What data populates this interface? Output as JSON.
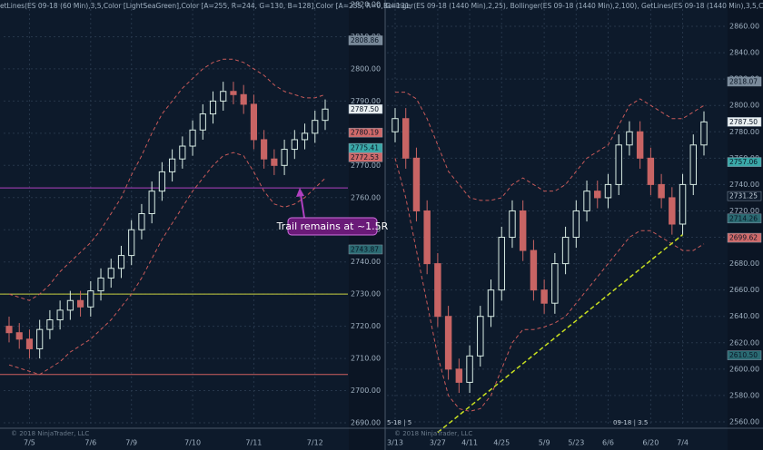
{
  "chart_data": [
    {
      "type": "candlestick",
      "title": "etLines(ES 09-18 (60 Min),3,5,Color [LightSeaGreen],Color [A=255, R=244, G=130, B=128],Color [A=255, R=0, G=131,",
      "watermark": "© 2018 NinjaTrader, LLC",
      "categories": [
        null,
        null,
        "7/5",
        null,
        null,
        null,
        null,
        null,
        "7/6",
        null,
        null,
        null,
        "7/9",
        null,
        null,
        null,
        null,
        null,
        "7/10",
        null,
        null,
        null,
        null,
        null,
        "7/11",
        null,
        null,
        null,
        null,
        null,
        "7/12",
        null
      ],
      "open": [
        2720,
        2718,
        2716,
        2713,
        2719,
        2722,
        2725,
        2728,
        2726,
        2731,
        2735,
        2738,
        2742,
        2750,
        2755,
        2762,
        2768,
        2772,
        2776,
        2781,
        2786,
        2790,
        2793,
        2792,
        2789,
        2778,
        2772,
        2770,
        2775,
        2778,
        2780,
        2784
      ],
      "high": [
        2723,
        2721,
        2719,
        2722,
        2725,
        2728,
        2731,
        2731,
        2734,
        2738,
        2741,
        2745,
        2753,
        2758,
        2765,
        2771,
        2775,
        2779,
        2784,
        2789,
        2793,
        2796,
        2796,
        2795,
        2792,
        2781,
        2775,
        2778,
        2781,
        2783,
        2787,
        2790.5
      ],
      "low": [
        2715,
        2713,
        2710,
        2710,
        2716,
        2719,
        2722,
        2723,
        2723,
        2728,
        2732,
        2735,
        2739,
        2747,
        2752,
        2759,
        2765,
        2769,
        2773,
        2778,
        2783,
        2787,
        2789,
        2786,
        2775,
        2769,
        2767,
        2767,
        2772,
        2775,
        2777,
        2781
      ],
      "close": [
        2718,
        2716,
        2713,
        2719,
        2722,
        2725,
        2728,
        2726,
        2731,
        2735,
        2738,
        2742,
        2750,
        2755,
        2762,
        2768,
        2772,
        2776,
        2781,
        2786,
        2790,
        2793,
        2792,
        2789,
        2778,
        2772,
        2770,
        2775,
        2778,
        2780,
        2784,
        2787.5
      ],
      "series": [
        {
          "name": "upper",
          "color": "#c85a5a",
          "values": [
            2730,
            2729,
            2728,
            2730,
            2733,
            2737,
            2740,
            2743,
            2746,
            2750,
            2755,
            2760,
            2767,
            2773,
            2780,
            2786,
            2790,
            2794,
            2797,
            2800,
            2802,
            2803,
            2803,
            2802,
            2800,
            2798,
            2795,
            2793,
            2792,
            2791,
            2791,
            2792
          ]
        },
        {
          "name": "lower",
          "color": "#c85a5a",
          "values": [
            2708,
            2707,
            2706,
            2705,
            2707,
            2709,
            2712,
            2714,
            2716,
            2719,
            2722,
            2726,
            2730,
            2735,
            2741,
            2747,
            2752,
            2757,
            2762,
            2766,
            2770,
            2773,
            2774,
            2773,
            2768,
            2762,
            2758,
            2757,
            2758,
            2760,
            2763,
            2766
          ]
        }
      ],
      "up_color": "#d8ece4",
      "down_color": "#c86464",
      "ylim": [
        2690,
        2820
      ],
      "yticks": [
        {
          "value": 2690,
          "label": "2690.00"
        },
        {
          "value": 2700,
          "label": "2700.00"
        },
        {
          "value": 2710,
          "label": "2710.00"
        },
        {
          "value": 2720,
          "label": "2720.00"
        },
        {
          "value": 2730,
          "label": "2730.00"
        },
        {
          "value": 2740,
          "label": "2740.00"
        },
        {
          "value": 2750,
          "label": "2750.00"
        },
        {
          "value": 2760,
          "label": "2760.00"
        },
        {
          "value": 2770,
          "label": "2770.00"
        },
        {
          "value": 2780,
          "label": "2780.00"
        },
        {
          "value": 2790,
          "label": "2790.00"
        },
        {
          "value": 2800,
          "label": "2800.00"
        },
        {
          "value": 2810,
          "label": "2810.00"
        },
        {
          "value": 2820,
          "label": "2820.00"
        }
      ],
      "hlines": [
        {
          "value": 2763,
          "color": "#b040c0"
        },
        {
          "value": 2730,
          "color": "#c8d040"
        },
        {
          "value": 2705,
          "color": "#d06060"
        }
      ],
      "price_markers": [
        {
          "value": 2808.86,
          "label": "2808.86",
          "color": "#7a8a9a"
        },
        {
          "value": 2787.5,
          "label": "2787.50",
          "color": "#e8eef0"
        },
        {
          "value": 2780.19,
          "label": "2780.19",
          "color": "#d06a6a"
        },
        {
          "value": 2775.41,
          "label": "2775.41",
          "color": "#3aa8a8"
        },
        {
          "value": 2772.53,
          "label": "2772.53",
          "color": "#d06a6a"
        },
        {
          "value": 2743.87,
          "label": "2743.87",
          "color": "#2a6a72"
        }
      ],
      "annotation": "Trail remains at ~1.5R"
    },
    {
      "type": "candlestick",
      "title": "Bollinger(ES 09-18 (1440 Min),2,25), Bollinger(ES 09-18 (1440 Min),2,100), GetLines(ES 09-18 (1440 Min),3,5,Color",
      "watermark": "© 2018 NinjaTrader, LLC",
      "labels": [
        "5-18 | 5",
        "09-18 | 3.5"
      ],
      "categories": [
        "3/13",
        null,
        null,
        null,
        "3/27",
        null,
        null,
        "4/11",
        null,
        null,
        "4/25",
        null,
        null,
        null,
        "5/9",
        null,
        null,
        "5/23",
        null,
        null,
        "6/6",
        null,
        null,
        null,
        "6/20",
        null,
        null,
        "7/4",
        null,
        null
      ],
      "open": [
        2780,
        2790,
        2760,
        2720,
        2680,
        2640,
        2600,
        2590,
        2610,
        2640,
        2660,
        2700,
        2720,
        2690,
        2660,
        2650,
        2680,
        2700,
        2720,
        2735,
        2730,
        2740,
        2770,
        2780,
        2760,
        2740,
        2730,
        2710,
        2740,
        2770
      ],
      "high": [
        2798,
        2798,
        2768,
        2728,
        2688,
        2648,
        2608,
        2618,
        2648,
        2668,
        2708,
        2728,
        2728,
        2698,
        2668,
        2688,
        2708,
        2728,
        2743,
        2743,
        2748,
        2778,
        2788,
        2788,
        2768,
        2748,
        2738,
        2748,
        2778,
        2795.5
      ],
      "low": [
        2772,
        2752,
        2712,
        2672,
        2632,
        2592,
        2582,
        2582,
        2602,
        2632,
        2652,
        2692,
        2682,
        2652,
        2642,
        2642,
        2672,
        2692,
        2712,
        2722,
        2722,
        2732,
        2762,
        2752,
        2732,
        2722,
        2702,
        2702,
        2732,
        2762
      ],
      "close": [
        2790,
        2760,
        2720,
        2680,
        2640,
        2600,
        2590,
        2610,
        2640,
        2660,
        2700,
        2720,
        2690,
        2660,
        2650,
        2680,
        2700,
        2720,
        2735,
        2730,
        2740,
        2770,
        2780,
        2760,
        2740,
        2730,
        2710,
        2740,
        2770,
        2787.5
      ],
      "series": [
        {
          "name": "upper",
          "color": "#c85a5a",
          "values": [
            2810,
            2810,
            2805,
            2790,
            2770,
            2750,
            2740,
            2730,
            2728,
            2728,
            2730,
            2740,
            2745,
            2740,
            2735,
            2735,
            2740,
            2750,
            2760,
            2765,
            2770,
            2785,
            2800,
            2805,
            2800,
            2795,
            2790,
            2790,
            2795,
            2800
          ]
        },
        {
          "name": "lower",
          "color": "#c85a5a",
          "values": [
            2760,
            2730,
            2690,
            2650,
            2610,
            2580,
            2570,
            2568,
            2570,
            2580,
            2600,
            2620,
            2630,
            2630,
            2632,
            2635,
            2640,
            2650,
            2660,
            2670,
            2680,
            2690,
            2700,
            2705,
            2705,
            2700,
            2695,
            2690,
            2690,
            2695
          ]
        }
      ],
      "up_color": "#d8ece4",
      "down_color": "#c86464",
      "ylim": [
        2560,
        2860
      ],
      "yticks": [
        {
          "value": 2560,
          "label": "2560.00"
        },
        {
          "value": 2580,
          "label": "2580.00"
        },
        {
          "value": 2600,
          "label": "2600.00"
        },
        {
          "value": 2620,
          "label": "2620.00"
        },
        {
          "value": 2640,
          "label": "2640.00"
        },
        {
          "value": 2660,
          "label": "2660.00"
        },
        {
          "value": 2680,
          "label": "2680.00"
        },
        {
          "value": 2700,
          "label": "2700.00"
        },
        {
          "value": 2720,
          "label": "2720.00"
        },
        {
          "value": 2740,
          "label": "2740.00"
        },
        {
          "value": 2760,
          "label": "2760.00"
        },
        {
          "value": 2780,
          "label": "2780.00"
        },
        {
          "value": 2800,
          "label": "2800.00"
        },
        {
          "value": 2820,
          "label": "2820.00"
        },
        {
          "value": 2840,
          "label": "2840.00"
        },
        {
          "value": 2860,
          "label": "2860.00"
        }
      ],
      "trendline": {
        "x": [
          4,
          27
        ],
        "y": [
          2552,
          2702
        ],
        "color": "#c8e020"
      },
      "price_markers": [
        {
          "value": 2818.07,
          "label": "2818.07",
          "color": "#7a8a9a"
        },
        {
          "value": 2787.5,
          "label": "2787.50",
          "color": "#e8eef0"
        },
        {
          "value": 2757.06,
          "label": "2757.06",
          "color": "#3aa8a8"
        },
        {
          "value": 2731.25,
          "label": "2731.25",
          "color": "#0d1a2b"
        },
        {
          "value": 2714.26,
          "label": "2714.26",
          "color": "#2a6a72"
        },
        {
          "value": 2699.62,
          "label": "2699.62",
          "color": "#d06a6a"
        },
        {
          "value": 2610.5,
          "label": "2610.50",
          "color": "#2a6a72"
        }
      ]
    }
  ]
}
